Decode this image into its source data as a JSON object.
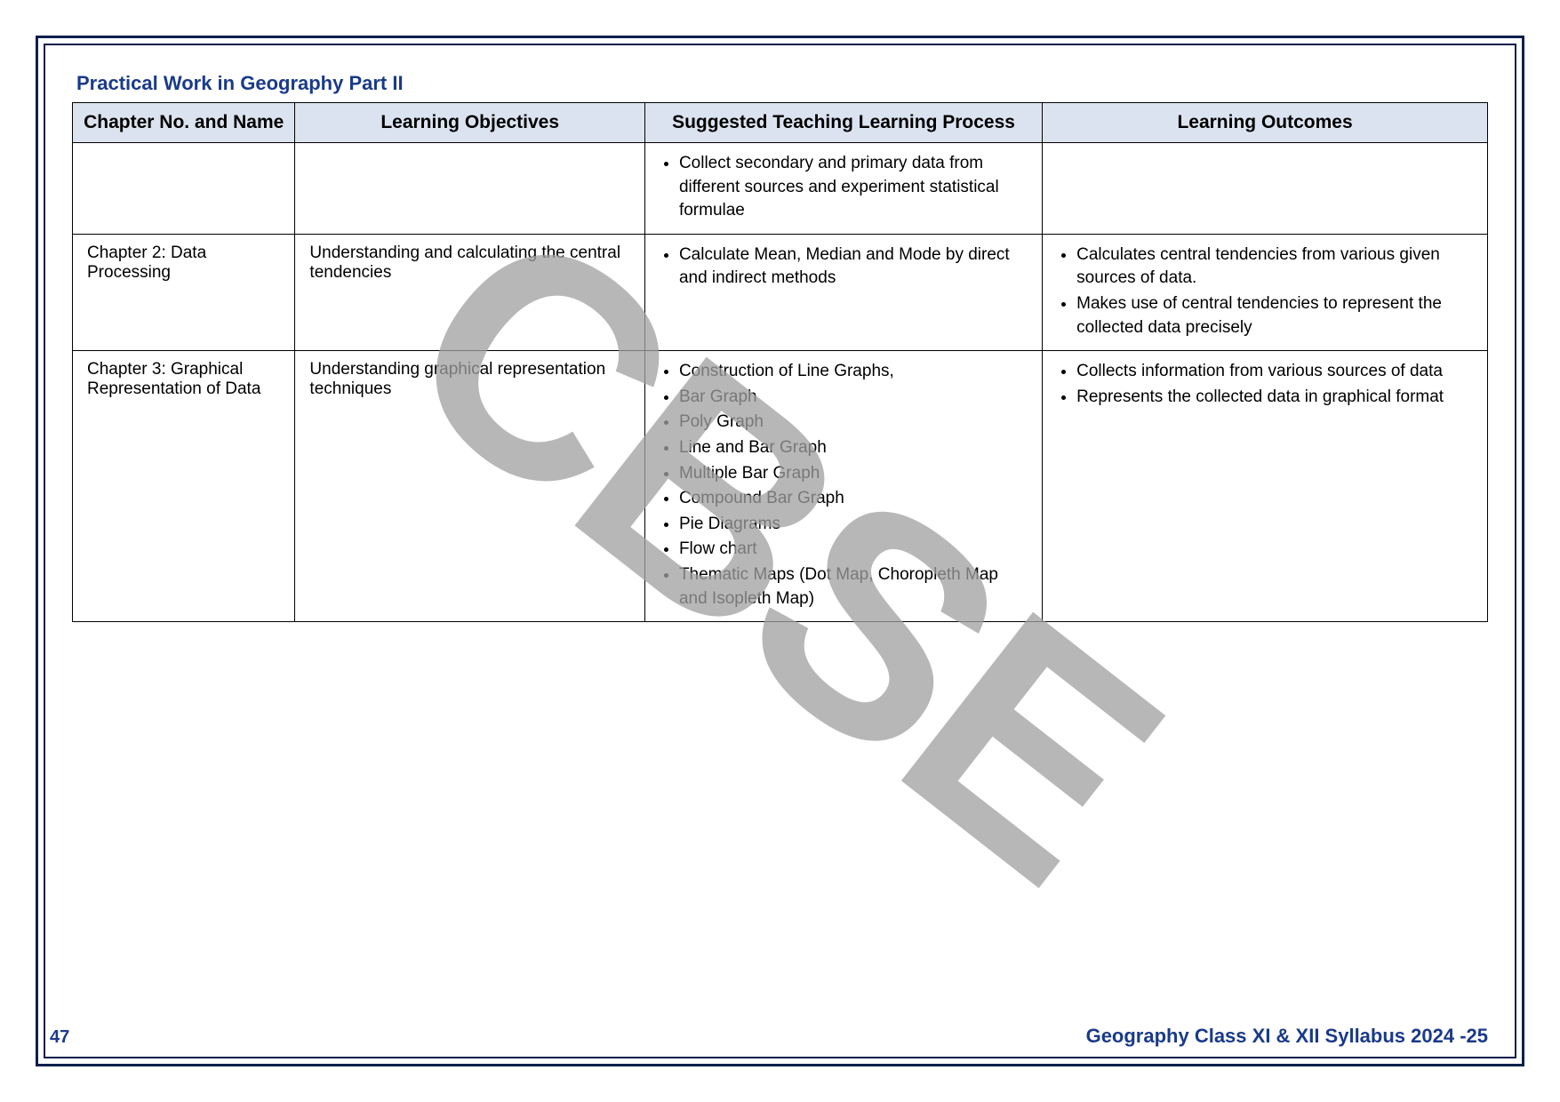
{
  "section_title": "Practical Work in Geography Part II",
  "watermark_text": "CBSE",
  "page_number": "47",
  "footer": "Geography Class XI & XII Syllabus 2024 -25",
  "colors": {
    "border": "#0a1f4d",
    "header_bg": "#dce3f0",
    "accent_text": "#1a3a8a",
    "watermark": "#a0a0a0",
    "body_text": "#000000",
    "page_bg": "#ffffff"
  },
  "table": {
    "headers": {
      "chapter": "Chapter No. and Name",
      "objectives": "Learning Objectives",
      "process": "Suggested Teaching Learning Process",
      "outcomes": "Learning Outcomes"
    },
    "rows": {
      "r0": {
        "chapter": "",
        "objectives": "",
        "process_items": {
          "i0": "Collect secondary and primary data from different sources and experiment statistical formulae"
        },
        "outcomes": ""
      },
      "r1": {
        "chapter": "Chapter 2: Data Processing",
        "objectives": "Understanding and calculating the central tendencies",
        "process_items": {
          "i0": "Calculate Mean, Median and Mode by direct and indirect methods"
        },
        "outcomes_items": {
          "i0": "Calculates central tendencies from various given sources of data.",
          "i1": "Makes use of central tendencies to represent the collected data precisely"
        }
      },
      "r2": {
        "chapter": "Chapter 3: Graphical Representation of Data",
        "objectives": "Understanding graphical representation techniques",
        "process_items": {
          "i0": "Construction of Line Graphs,",
          "i1": "Bar Graph",
          "i2": "Poly Graph",
          "i3": "Line and Bar Graph",
          "i4": "Multiple Bar Graph",
          "i5": "Compound Bar Graph",
          "i6": "Pie Diagrams",
          "i7": "Flow chart",
          "i8": "Thematic Maps (Dot Map, Choropleth Map and Isopleth Map)"
        },
        "outcomes_items": {
          "i0": "Collects information from various sources of data",
          "i1": "Represents the collected data in graphical format"
        }
      }
    }
  }
}
